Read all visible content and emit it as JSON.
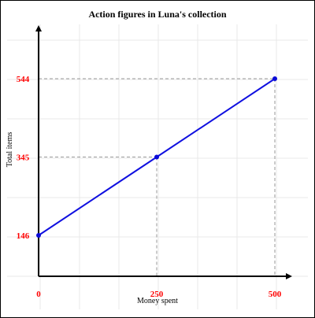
{
  "chart_data": {
    "type": "line",
    "title": "Action figures in Luna's collection",
    "xlabel": "Money spent",
    "ylabel": "Total items",
    "x": [
      0,
      250,
      500
    ],
    "y": [
      146,
      345,
      544
    ],
    "xticks": [
      "0",
      "250",
      "500"
    ],
    "yticks": [
      "146",
      "345",
      "544"
    ],
    "xlim": [
      0,
      500
    ],
    "ylim": [
      146,
      544
    ],
    "grid": true,
    "guide_lines": "dashed",
    "colors": {
      "line": "#1010e0",
      "point": "#0a0ad8",
      "tick_label": "#ff0000",
      "axis": "#000000",
      "grid": "#e8e8e8",
      "guide": "#9a9a9a"
    }
  }
}
